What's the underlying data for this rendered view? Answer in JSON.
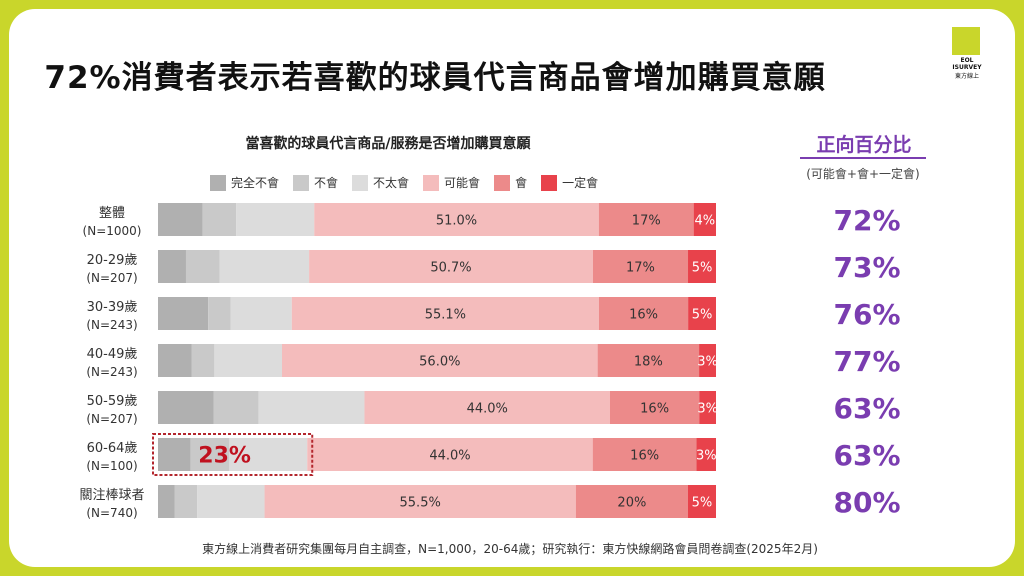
{
  "title": "72%消費者表示若喜歡的球員代言商品會增加購買意願",
  "logo": {
    "line1": "EOL",
    "line2": "ISURVEY",
    "line3": "東方線上"
  },
  "chart_data": {
    "type": "bar",
    "orientation": "horizontal",
    "stacked": true,
    "normalized": true,
    "title": "當喜歡的球員代言商品/服務是否增加購買意願",
    "categories": [
      "整體",
      "20-29歲",
      "30-39歲",
      "40-49歲",
      "50-59歲",
      "60-64歲",
      "關注棒球者"
    ],
    "sample_sizes": [
      "(N=1000)",
      "(N=207)",
      "(N=243)",
      "(N=243)",
      "(N=207)",
      "(N=100)",
      "(N=740)"
    ],
    "series": [
      {
        "name": "完全不會",
        "color": "#b0b0b0",
        "values": [
          8,
          5,
          9,
          6,
          10,
          5,
          3
        ]
      },
      {
        "name": "不會",
        "color": "#c9c9c9",
        "values": [
          6,
          6,
          4,
          4,
          8,
          6,
          4
        ]
      },
      {
        "name": "不太會",
        "color": "#dcdcdc",
        "values": [
          14,
          16,
          11,
          12,
          19,
          12,
          12
        ]
      },
      {
        "name": "可能會",
        "color": "#f4bcbc",
        "values": [
          51.0,
          50.7,
          55.1,
          56.0,
          44.0,
          44.0,
          55.5
        ]
      },
      {
        "name": "會",
        "color": "#ec8a8a",
        "values": [
          17,
          17,
          16,
          18,
          16,
          16,
          20
        ]
      },
      {
        "name": "一定會",
        "color": "#e8424b",
        "values": [
          4,
          5,
          5,
          3,
          3,
          3,
          5
        ]
      }
    ],
    "segment_labels": [
      [
        "",
        "",
        "",
        "51.0%",
        "17%",
        "4%"
      ],
      [
        "",
        "",
        "",
        "50.7%",
        "17%",
        "5%"
      ],
      [
        "",
        "",
        "",
        "55.1%",
        "16%",
        "5%"
      ],
      [
        "",
        "",
        "",
        "56.0%",
        "18%",
        "3%"
      ],
      [
        "",
        "",
        "",
        "44.0%",
        "16%",
        "3%"
      ],
      [
        "",
        "",
        "",
        "44.0%",
        "16%",
        "3%"
      ],
      [
        "",
        "",
        "",
        "55.5%",
        "20%",
        "5%"
      ]
    ],
    "xlim": [
      0,
      100
    ],
    "legend_position": "top",
    "grid": false,
    "highlight": {
      "category": "60-64歲",
      "label": "23%",
      "color": "#c0111f"
    },
    "positive": {
      "title": "正向百分比",
      "subtitle": "(可能會+會+一定會)",
      "values": [
        "72%",
        "73%",
        "76%",
        "77%",
        "63%",
        "63%",
        "80%"
      ],
      "color": "#7a3db0"
    }
  },
  "footnote": "東方線上消費者研究集團每月自主調查，N=1,000，20-64歲；研究執行：東方快線網路會員問卷調查(2025年2月)"
}
